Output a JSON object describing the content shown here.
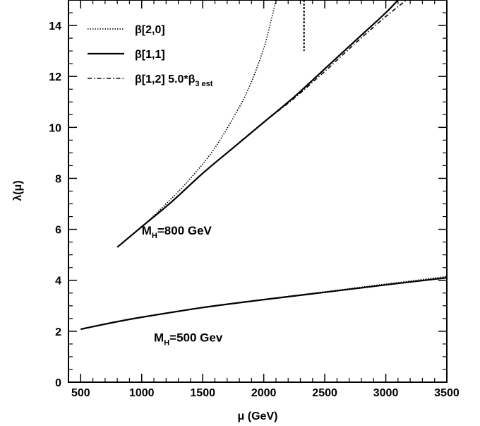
{
  "chart_data": {
    "type": "line",
    "xlabel": "μ (GeV)",
    "ylabel": "λ(μ)",
    "xlim": [
      400,
      3500
    ],
    "ylim": [
      0,
      15
    ],
    "x_ticks": [
      500,
      1000,
      1500,
      2000,
      2500,
      3000,
      3500
    ],
    "y_ticks": [
      0,
      2,
      4,
      6,
      8,
      10,
      12,
      14
    ],
    "grid": false,
    "legend_position": "top-left",
    "legend": [
      {
        "label": "β[2,0]",
        "style": "dotted"
      },
      {
        "label": "β[1,1]",
        "style": "solid"
      },
      {
        "label_main": "β[1,2] 5.0*β",
        "label_sub": "3 est",
        "style": "dashdot"
      }
    ],
    "annotations": [
      {
        "main": "M",
        "sub": "H",
        "rest": "=800 GeV",
        "x": 1000,
        "y": 5.8
      },
      {
        "main": "M",
        "sub": "H",
        "rest": "=500 Gev",
        "x": 1100,
        "y": 1.6
      }
    ],
    "series": [
      {
        "style": "dotted",
        "x": [
          800,
          1000,
          1200,
          1400,
          1600,
          1800,
          1900,
          2000,
          2050,
          2100
        ],
        "y": [
          5.3,
          6.1,
          7.0,
          8.0,
          9.2,
          10.8,
          11.8,
          13.1,
          14.0,
          15.0
        ]
      },
      {
        "style": "solid",
        "x": [
          800,
          1000,
          1250,
          1500,
          1750,
          2000,
          2250,
          2500,
          2750,
          3000,
          3100
        ],
        "y": [
          5.3,
          6.1,
          7.1,
          8.2,
          9.2,
          10.2,
          11.2,
          12.3,
          13.4,
          14.5,
          15.0
        ]
      },
      {
        "style": "dashdot",
        "x": [
          800,
          1000,
          1250,
          1500,
          1750,
          2000,
          2250,
          2500,
          2750,
          3000,
          3170
        ],
        "y": [
          5.3,
          6.1,
          7.1,
          8.2,
          9.2,
          10.2,
          11.15,
          12.2,
          13.3,
          14.35,
          15.0
        ]
      },
      {
        "style": "dashed",
        "x": [
          2330,
          2330
        ],
        "y": [
          15.0,
          13.0
        ]
      },
      {
        "style": "solid",
        "x": [
          500,
          750,
          1000,
          1500,
          2000,
          2500,
          3000,
          3500
        ],
        "y": [
          2.08,
          2.33,
          2.55,
          2.93,
          3.24,
          3.53,
          3.82,
          4.1
        ]
      },
      {
        "style": "dotted",
        "x": [
          500,
          750,
          1000,
          1500,
          2000,
          2500,
          3000,
          3500
        ],
        "y": [
          2.08,
          2.33,
          2.55,
          2.94,
          3.25,
          3.55,
          3.85,
          4.15
        ]
      }
    ]
  }
}
